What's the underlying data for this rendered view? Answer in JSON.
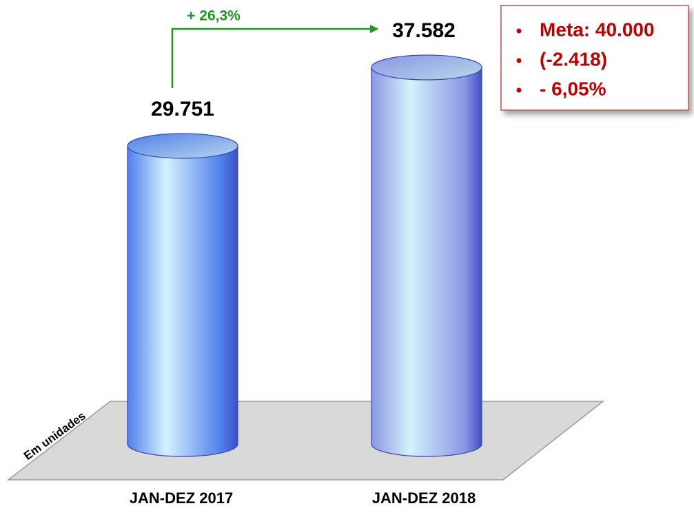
{
  "chart_data": {
    "type": "bar",
    "categories": [
      "JAN-DEZ 2017",
      "JAN-DEZ 2018"
    ],
    "values": [
      29751,
      37582
    ],
    "value_labels": [
      "29.751",
      "37.582"
    ],
    "colors": [
      "#4f7fea",
      "#8a96e4"
    ],
    "axis_label": "Em unidades",
    "growth_annotation": "+ 26,3%",
    "notes": [
      "Meta: 40.000",
      "(-2.418)",
      "- 6,05%"
    ]
  }
}
